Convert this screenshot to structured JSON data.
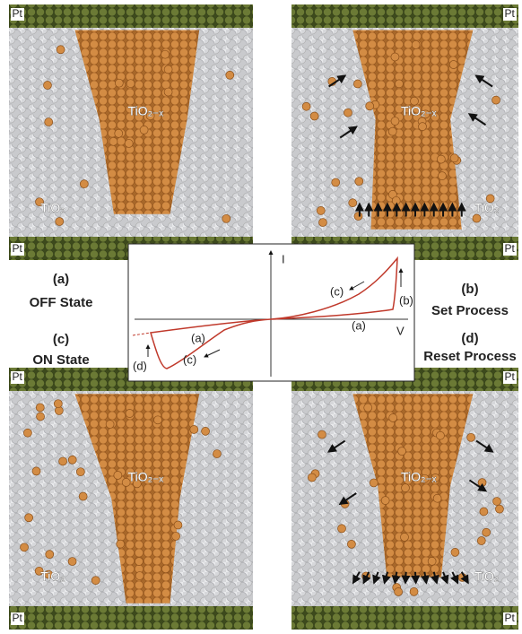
{
  "panels": [
    {
      "pt_top": "Pt",
      "pt_bottom": "Pt",
      "filament": "TiO₂₋ₓ",
      "matrix": "TiO₂"
    },
    {
      "pt_top": "Pt",
      "pt_bottom": "Pt",
      "filament": "TiO₂₋ₓ",
      "matrix": "TiO₂"
    },
    {
      "pt_top": "Pt",
      "pt_bottom": "Pt",
      "filament": "TiO₂₋ₓ",
      "matrix": "TiO₂"
    },
    {
      "pt_top": "Pt",
      "pt_bottom": "Pt",
      "filament": "TiO₂₋ₓ",
      "matrix": "TiO₂"
    }
  ],
  "captions": [
    {
      "label": "(a)",
      "state": "OFF State"
    },
    {
      "label": "(b)",
      "state": "Set Process"
    },
    {
      "label": "(c)",
      "state": "ON State"
    },
    {
      "label": "(d)",
      "state": "Reset Process"
    }
  ],
  "graph": {
    "y_axis": "I",
    "x_axis": "V",
    "labels": [
      "(a)",
      "(a)",
      "(b)",
      "(c)",
      "(c)",
      "(d)"
    ]
  }
}
